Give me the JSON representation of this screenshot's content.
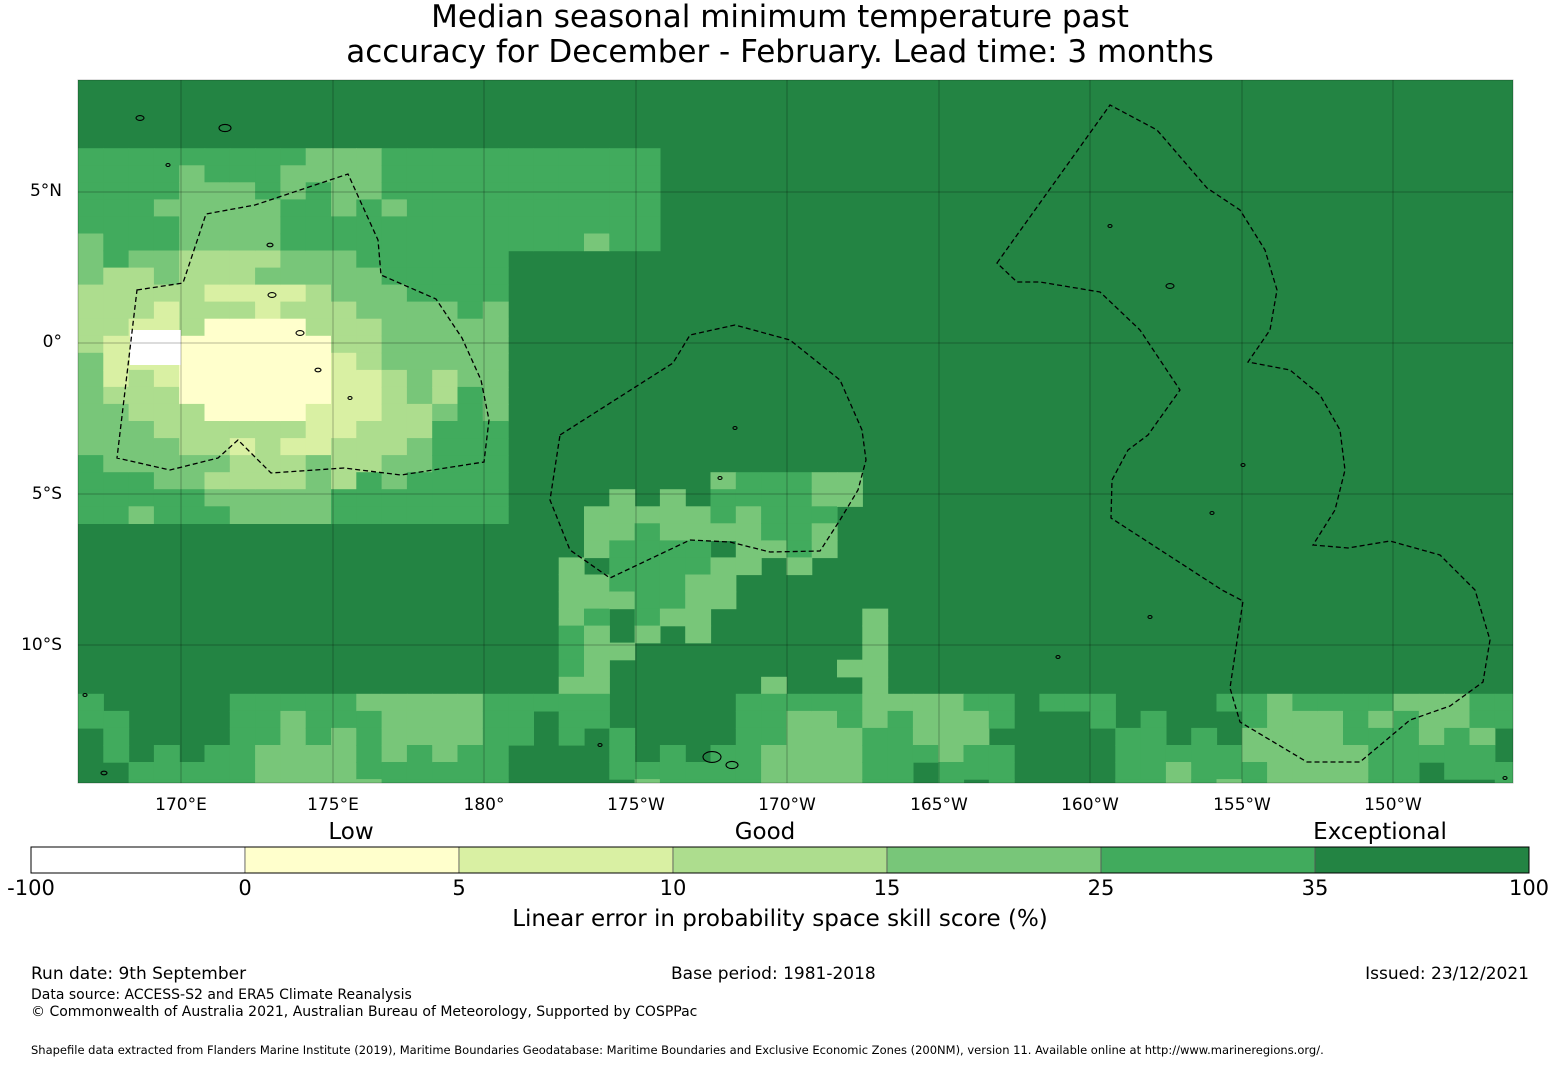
{
  "title": {
    "line1": "Median seasonal minimum temperature past",
    "line2": "accuracy for December - February. Lead time: 3 months"
  },
  "map": {
    "lat_labels": [
      "5°N",
      "0°",
      "5°S",
      "10°S"
    ],
    "lon_labels": [
      "170°E",
      "175°E",
      "180°",
      "175°W",
      "170°W",
      "165°W",
      "160°W",
      "155°W",
      "150°W"
    ],
    "base_color": "#238443"
  },
  "colorbar": {
    "categories": [
      "Low",
      "Good",
      "Exceptional"
    ],
    "ticks": [
      "-100",
      "0",
      "5",
      "10",
      "15",
      "25",
      "35",
      "100"
    ],
    "colors": [
      "#ffffff",
      "#ffffcc",
      "#d9f0a3",
      "#addd8e",
      "#78c679",
      "#41ab5d",
      "#238443"
    ],
    "label": "Linear error in probability space skill score (%)"
  },
  "footer": {
    "run_date": "Run date: 9th September",
    "base_period": "Base period: 1981-2018",
    "issued": "Issued: 23/12/2021",
    "data_source": "Data source: ACCESS-S2 and ERA5 Climate Reanalysis",
    "copyright": "© Commonwealth of Australia 2021, Australian Bureau of Meteorology, Supported by COSPPac",
    "shapefile": "Shapefile data extracted from Flanders Marine Institute (2019), Maritime Boundaries Geodatabase: Maritime Boundaries and Exclusive Economic Zones (200NM), version 11. Available online at http://www.marineregions.org/."
  }
}
